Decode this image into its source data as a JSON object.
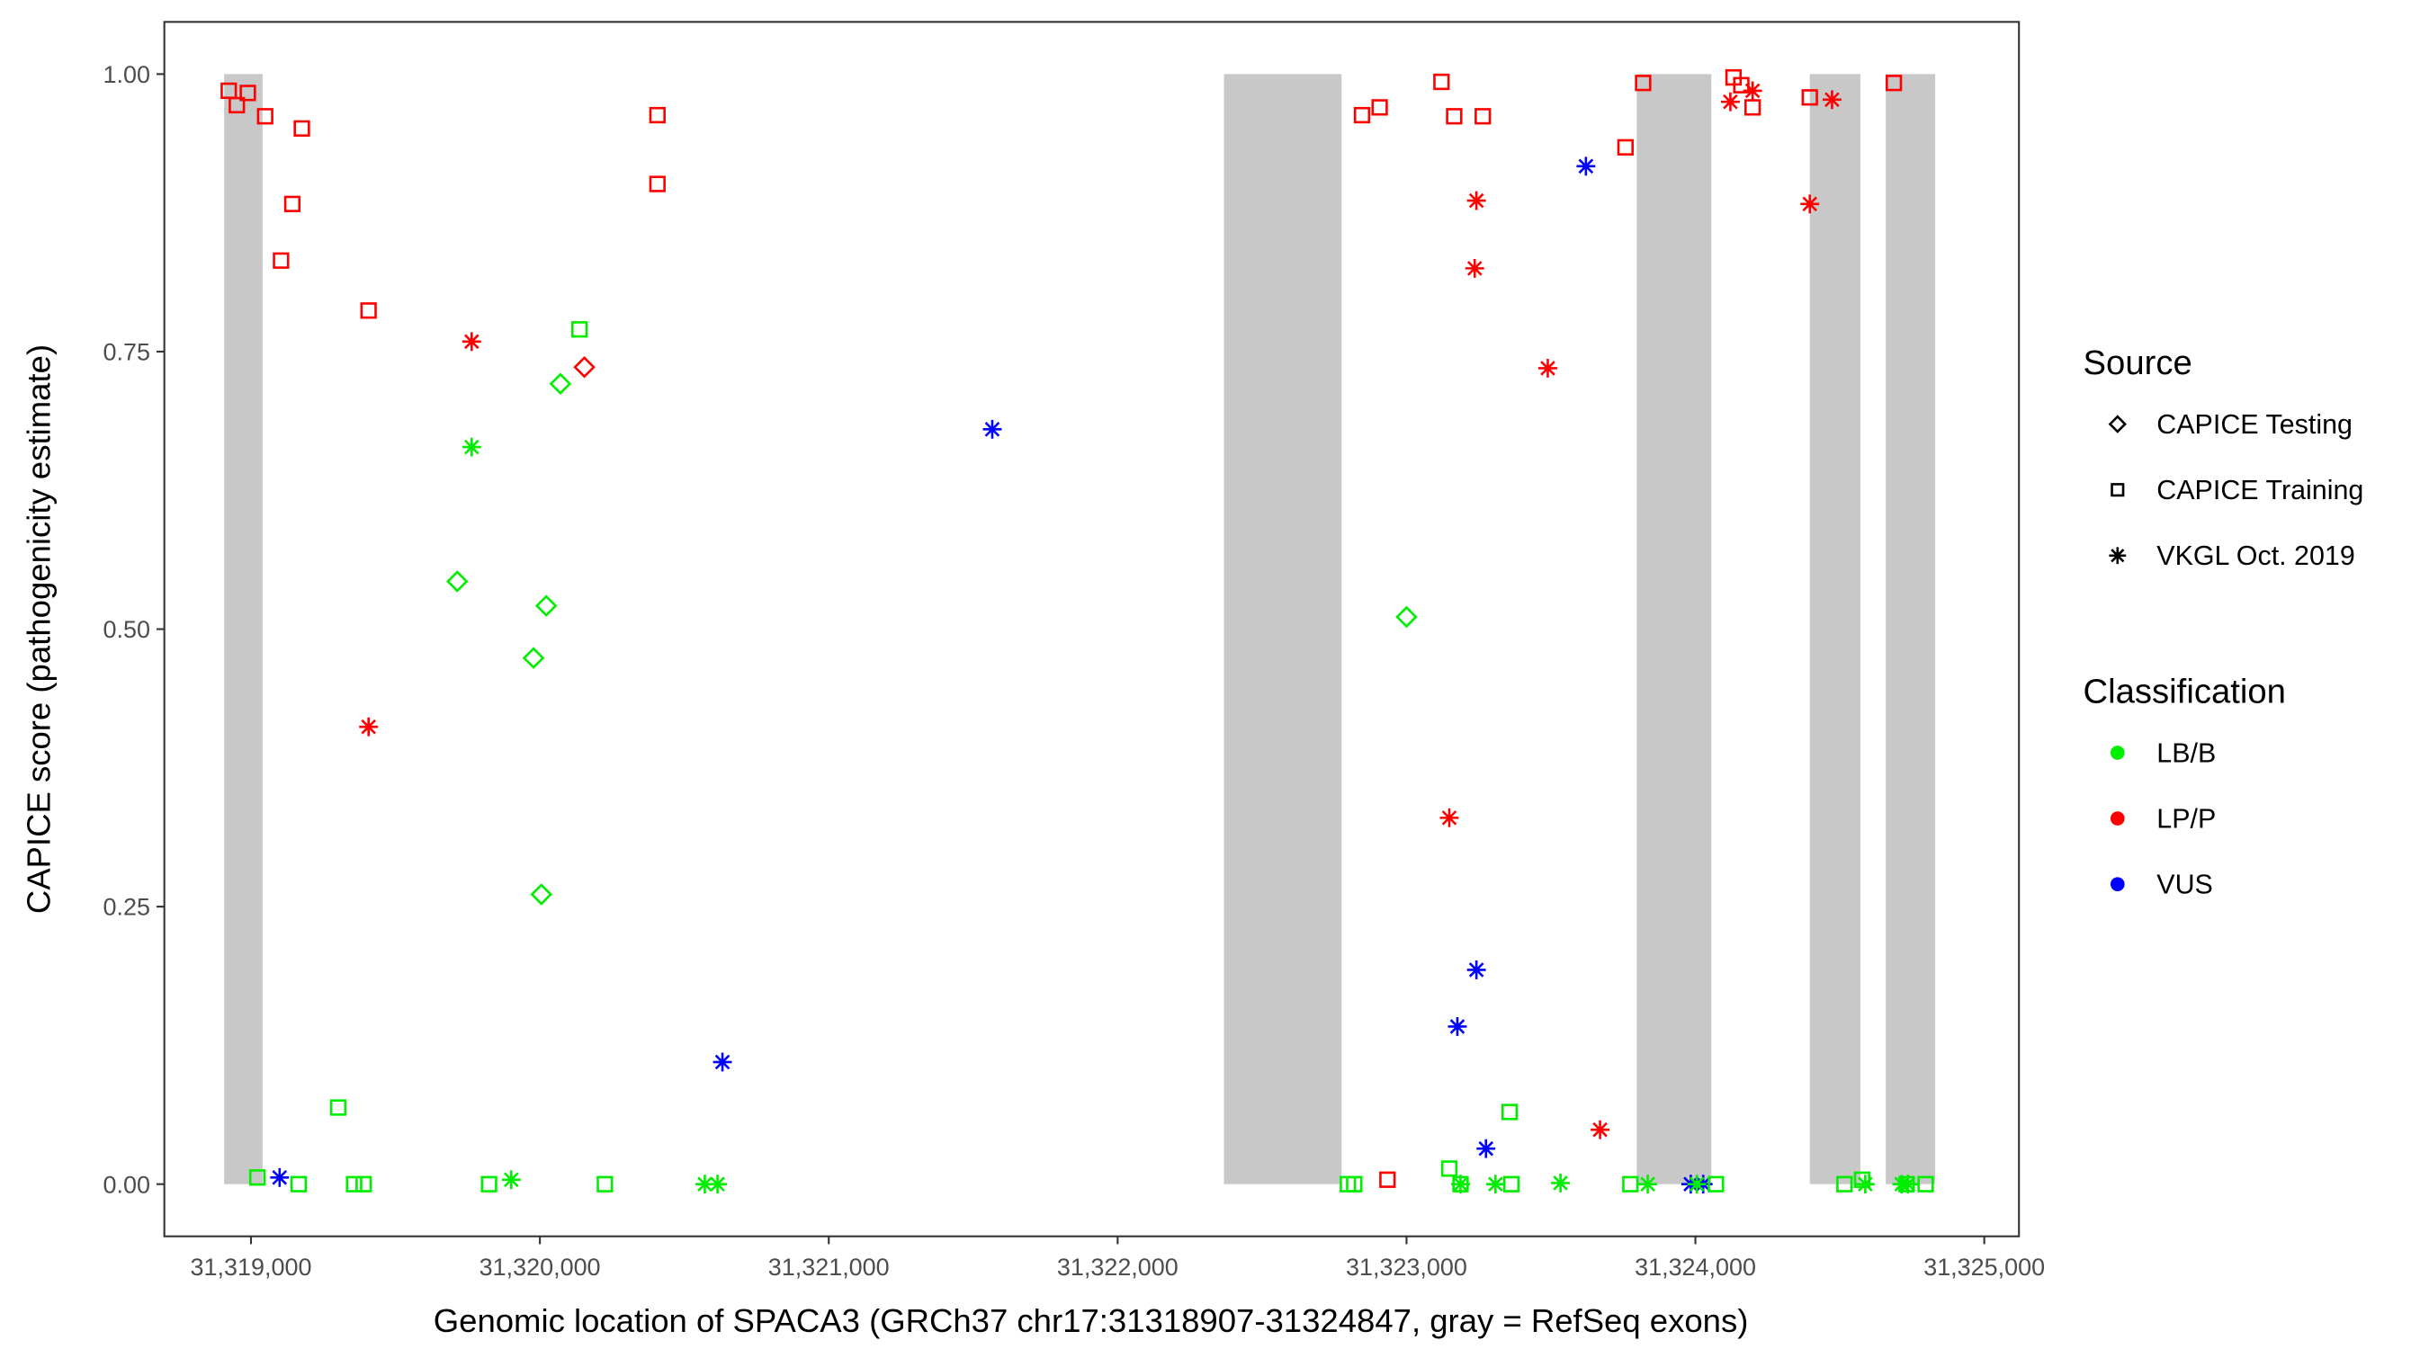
{
  "chart_data": {
    "type": "scatter",
    "xlabel": "Genomic location of SPACA3 (GRCh37 chr17:31318907-31324847, gray = RefSeq exons)",
    "ylabel": "CAPICE score (pathogenicity estimate)",
    "xlim": [
      31318700,
      31325120
    ],
    "ylim": [
      -0.047,
      1.047
    ],
    "grid": false,
    "x_ticks": [
      31319000,
      31320000,
      31321000,
      31322000,
      31323000,
      31324000,
      31325000
    ],
    "x_tick_labels": [
      "31,319,000",
      "31,320,000",
      "31,321,000",
      "31,322,000",
      "31,323,000",
      "31,324,000",
      "31,325,000"
    ],
    "y_ticks": [
      0,
      0.25,
      0.5,
      0.75,
      1.0
    ],
    "y_tick_labels": [
      "0.00",
      "0.25",
      "0.50",
      "0.75",
      "1.00"
    ],
    "exons": [
      [
        31318907,
        31319040
      ],
      [
        31322368,
        31322775
      ],
      [
        31323797,
        31324055
      ],
      [
        31324396,
        31324571
      ],
      [
        31324659,
        31324830
      ]
    ],
    "exon_color": "#c8c8c8",
    "legend_placement": "right",
    "legend": {
      "source_title": "Source",
      "sources": [
        {
          "name": "CAPICE Testing",
          "shape": "diamond"
        },
        {
          "name": "CAPICE Training",
          "shape": "square"
        },
        {
          "name": "VKGL Oct. 2019",
          "shape": "asterisk"
        }
      ],
      "class_title": "Classification",
      "classes": [
        {
          "name": "LB/B",
          "color": "#00ee00"
        },
        {
          "name": "LP/P",
          "color": "#ff0000"
        },
        {
          "name": "VUS",
          "color": "#0000ff"
        }
      ]
    },
    "point_fields": [
      "position",
      "score",
      "source_index",
      "class_index"
    ],
    "points": [
      [
        31318923,
        0.985,
        1,
        1
      ],
      [
        31318951,
        0.972,
        1,
        1
      ],
      [
        31318989,
        0.983,
        1,
        1
      ],
      [
        31319049,
        0.962,
        1,
        1
      ],
      [
        31319176,
        0.951,
        1,
        1
      ],
      [
        31319143,
        0.883,
        1,
        1
      ],
      [
        31319104,
        0.832,
        1,
        1
      ],
      [
        31319407,
        0.787,
        1,
        1
      ],
      [
        31320407,
        0.963,
        1,
        1
      ],
      [
        31320407,
        0.901,
        1,
        1
      ],
      [
        31320137,
        0.77,
        1,
        0
      ],
      [
        31319302,
        0.069,
        1,
        0
      ],
      [
        31319022,
        0.006,
        1,
        0
      ],
      [
        31319165,
        0,
        1,
        0
      ],
      [
        31319357,
        0,
        1,
        0
      ],
      [
        31319390,
        0,
        1,
        0
      ],
      [
        31319824,
        0,
        1,
        0
      ],
      [
        31320225,
        0,
        1,
        0
      ],
      [
        31320071,
        0.721,
        0,
        0
      ],
      [
        31319714,
        0.543,
        0,
        0
      ],
      [
        31320022,
        0.521,
        0,
        0
      ],
      [
        31319978,
        0.474,
        0,
        0
      ],
      [
        31320005,
        0.261,
        0,
        0
      ],
      [
        31323000,
        0.511,
        0,
        0
      ],
      [
        31320154,
        0.736,
        0,
        1
      ],
      [
        31319764,
        0.759,
        2,
        1
      ],
      [
        31319407,
        0.412,
        2,
        1
      ],
      [
        31319764,
        0.664,
        2,
        0
      ],
      [
        31319901,
        0.004,
        2,
        0
      ],
      [
        31320571,
        0,
        2,
        0
      ],
      [
        31320615,
        0,
        2,
        0
      ],
      [
        31319099,
        0.006,
        2,
        2
      ],
      [
        31320632,
        0.11,
        2,
        2
      ],
      [
        31321566,
        0.68,
        2,
        2
      ],
      [
        31322846,
        0.963,
        1,
        1
      ],
      [
        31322907,
        0.97,
        1,
        1
      ],
      [
        31323121,
        0.993,
        1,
        1
      ],
      [
        31323165,
        0.962,
        1,
        1
      ],
      [
        31323264,
        0.962,
        1,
        1
      ],
      [
        31323758,
        0.934,
        1,
        1
      ],
      [
        31323819,
        0.992,
        1,
        1
      ],
      [
        31324132,
        0.997,
        1,
        1
      ],
      [
        31324159,
        0.99,
        1,
        1
      ],
      [
        31324198,
        0.97,
        1,
        1
      ],
      [
        31324396,
        0.979,
        1,
        1
      ],
      [
        31324687,
        0.992,
        1,
        1
      ],
      [
        31322934,
        0.004,
        1,
        1
      ],
      [
        31323242,
        0.886,
        2,
        1
      ],
      [
        31323236,
        0.825,
        2,
        1
      ],
      [
        31323489,
        0.735,
        2,
        1
      ],
      [
        31323148,
        0.33,
        2,
        1
      ],
      [
        31323670,
        0.049,
        2,
        1
      ],
      [
        31324121,
        0.975,
        2,
        1
      ],
      [
        31324198,
        0.985,
        2,
        1
      ],
      [
        31324396,
        0.883,
        2,
        1
      ],
      [
        31324473,
        0.977,
        2,
        1
      ],
      [
        31323621,
        0.917,
        2,
        2
      ],
      [
        31323242,
        0.193,
        2,
        2
      ],
      [
        31323176,
        0.142,
        2,
        2
      ],
      [
        31323275,
        0.032,
        2,
        2
      ],
      [
        31323984,
        0,
        2,
        2
      ],
      [
        31324027,
        0,
        2,
        2
      ],
      [
        31322797,
        0,
        1,
        0
      ],
      [
        31322819,
        0,
        1,
        0
      ],
      [
        31323148,
        0.014,
        1,
        0
      ],
      [
        31323187,
        0,
        1,
        0
      ],
      [
        31323357,
        0.065,
        1,
        0
      ],
      [
        31323363,
        0,
        1,
        0
      ],
      [
        31323775,
        0,
        1,
        0
      ],
      [
        31324071,
        0,
        1,
        0
      ],
      [
        31324516,
        0,
        1,
        0
      ],
      [
        31324577,
        0.004,
        1,
        0
      ],
      [
        31324731,
        0,
        1,
        0
      ],
      [
        31324797,
        0,
        1,
        0
      ],
      [
        31323187,
        0,
        2,
        0
      ],
      [
        31323308,
        0,
        2,
        0
      ],
      [
        31323533,
        0.001,
        2,
        0
      ],
      [
        31323835,
        0,
        2,
        0
      ],
      [
        31324005,
        0,
        2,
        0
      ],
      [
        31324588,
        0,
        2,
        0
      ],
      [
        31324714,
        0,
        2,
        0
      ],
      [
        31324736,
        0,
        2,
        0
      ]
    ]
  }
}
